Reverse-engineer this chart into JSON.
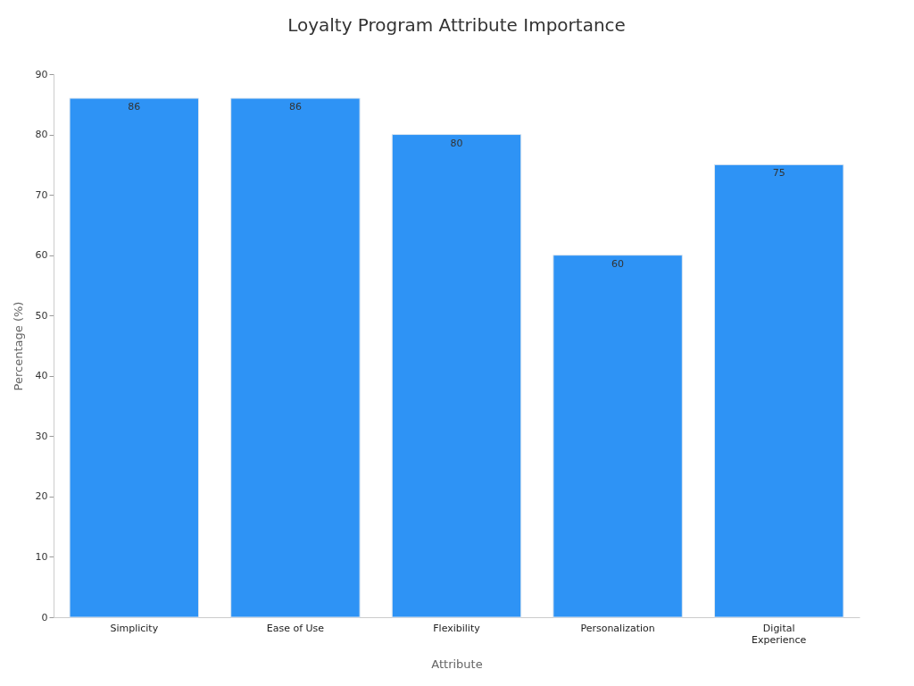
{
  "chart_data": {
    "type": "bar",
    "title": "Loyalty Program Attribute Importance",
    "xlabel": "Attribute",
    "ylabel": "Percentage (%)",
    "categories": [
      "Simplicity",
      "Ease of Use",
      "Flexibility",
      "Personalization",
      "Digital Experience"
    ],
    "values": [
      86,
      86,
      80,
      60,
      75
    ],
    "color": "#2e93f5",
    "ylim": [
      0,
      90
    ],
    "yticks": [
      0,
      10,
      20,
      30,
      40,
      50,
      60,
      70,
      80,
      90
    ],
    "data_labels": true
  }
}
